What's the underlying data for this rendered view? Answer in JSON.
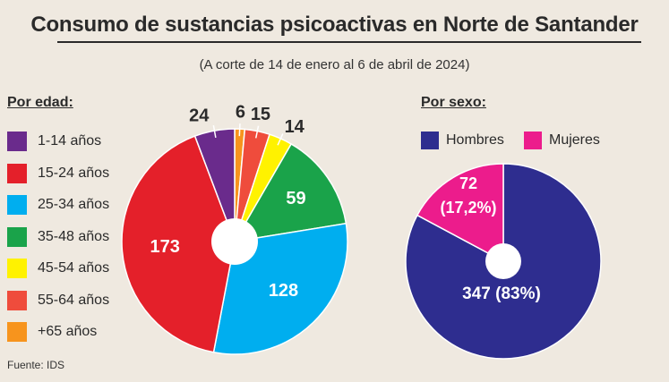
{
  "title": "Consumo de sustancias psicoactivas en Norte de Santander",
  "subtitle": "(A corte de 14 de enero al 6 de abril de 2024)",
  "age_label": "Por edad:",
  "sex_label": "Por sexo:",
  "source": "Fuente: IDS",
  "age_legend": [
    {
      "label": "1-14 años",
      "color": "#6a2b8c"
    },
    {
      "label": "15-24 años",
      "color": "#e4202a"
    },
    {
      "label": "25-34 años",
      "color": "#00aeef"
    },
    {
      "label": "35-48 años",
      "color": "#1aa34a"
    },
    {
      "label": "45-54 años",
      "color": "#fff200"
    },
    {
      "label": "55-64 años",
      "color": "#ef4c3c"
    },
    {
      "label": "+65 años",
      "color": "#f7941d"
    }
  ],
  "sex_legend": [
    {
      "label": "Hombres",
      "color": "#2e2d8f"
    },
    {
      "label": "Mujeres",
      "color": "#ec1c8c"
    }
  ],
  "chart_data": [
    {
      "type": "pie",
      "title": "Por edad:",
      "categories": [
        "6",
        "15",
        "14",
        "59",
        "128",
        "173",
        "24"
      ],
      "legend_order": [
        "1-14 años",
        "15-24 años",
        "25-34 años",
        "35-48 años",
        "45-54 años",
        "55-64 años",
        "+65 años"
      ],
      "slices": [
        {
          "group": "+65 años",
          "value": 6,
          "label": "6",
          "color": "#f7941d"
        },
        {
          "group": "55-64 años",
          "value": 15,
          "label": "15",
          "color": "#ef4c3c"
        },
        {
          "group": "45-54 años",
          "value": 14,
          "label": "14",
          "color": "#fff200"
        },
        {
          "group": "35-48 años",
          "value": 59,
          "label": "59",
          "color": "#1aa34a"
        },
        {
          "group": "25-34 años",
          "value": 128,
          "label": "128",
          "color": "#00aeef"
        },
        {
          "group": "15-24 años",
          "value": 173,
          "label": "173",
          "color": "#e4202a"
        },
        {
          "group": "1-14 años",
          "value": 24,
          "label": "24",
          "color": "#6a2b8c"
        }
      ]
    },
    {
      "type": "pie",
      "title": "Por sexo:",
      "slices": [
        {
          "group": "Hombres",
          "value": 347,
          "label": "347 (83%)",
          "color": "#2e2d8f"
        },
        {
          "group": "Mujeres",
          "value": 72,
          "label_line1": "72",
          "label_line2": "(17,2%)",
          "color": "#ec1c8c"
        }
      ]
    }
  ]
}
